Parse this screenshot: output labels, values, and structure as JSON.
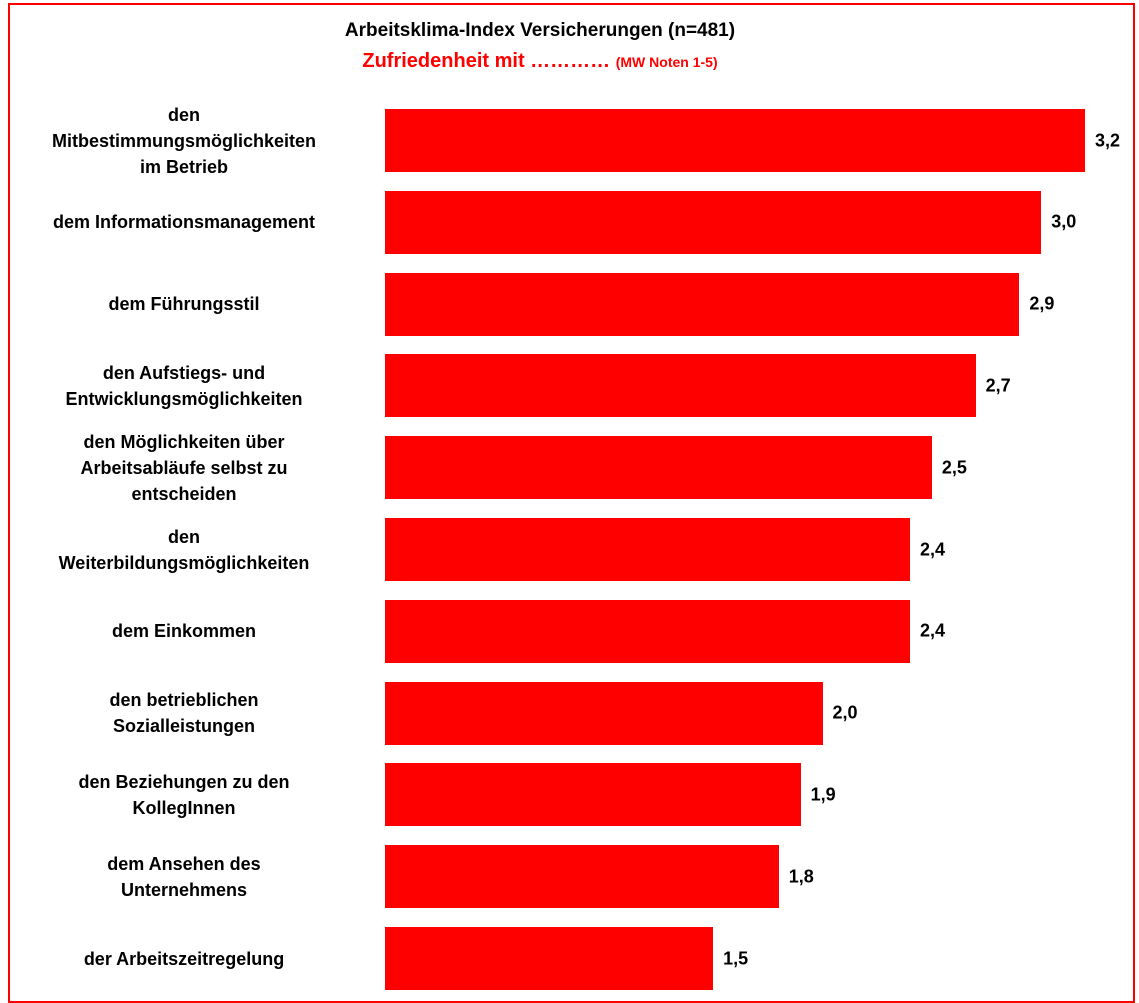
{
  "chart_data": {
    "type": "bar",
    "orientation": "horizontal",
    "title": "Arbeitsklima-Index Versicherungen (n=481)",
    "subtitle": "Zufriedenheit mit …………",
    "subtitle_note": "(MW Noten 1-5)",
    "categories": [
      "den\nMitbestimmungsmöglichkeiten\nim Betrieb",
      "dem Informationsmanagement",
      "dem Führungsstil",
      "den Aufstiegs- und\nEntwicklungsmöglichkeiten",
      "den Möglichkeiten über\nArbeitsabläufe selbst zu\nentscheiden",
      "den\nWeiterbildungsmöglichkeiten",
      "dem Einkommen",
      "den betrieblichen\nSozialleistungen",
      "den Beziehungen zu den\nKollegInnen",
      "dem Ansehen des\nUnternehmens",
      "der Arbeitszeitregelung"
    ],
    "values": [
      3.2,
      3.0,
      2.9,
      2.7,
      2.5,
      2.4,
      2.4,
      2.0,
      1.9,
      1.8,
      1.5
    ],
    "value_labels": [
      "3,2",
      "3,0",
      "2,9",
      "2,7",
      "2,5",
      "2,4",
      "2,4",
      "2,0",
      "1,9",
      "1,8",
      "1,5"
    ],
    "color": "#ff0000"
  }
}
